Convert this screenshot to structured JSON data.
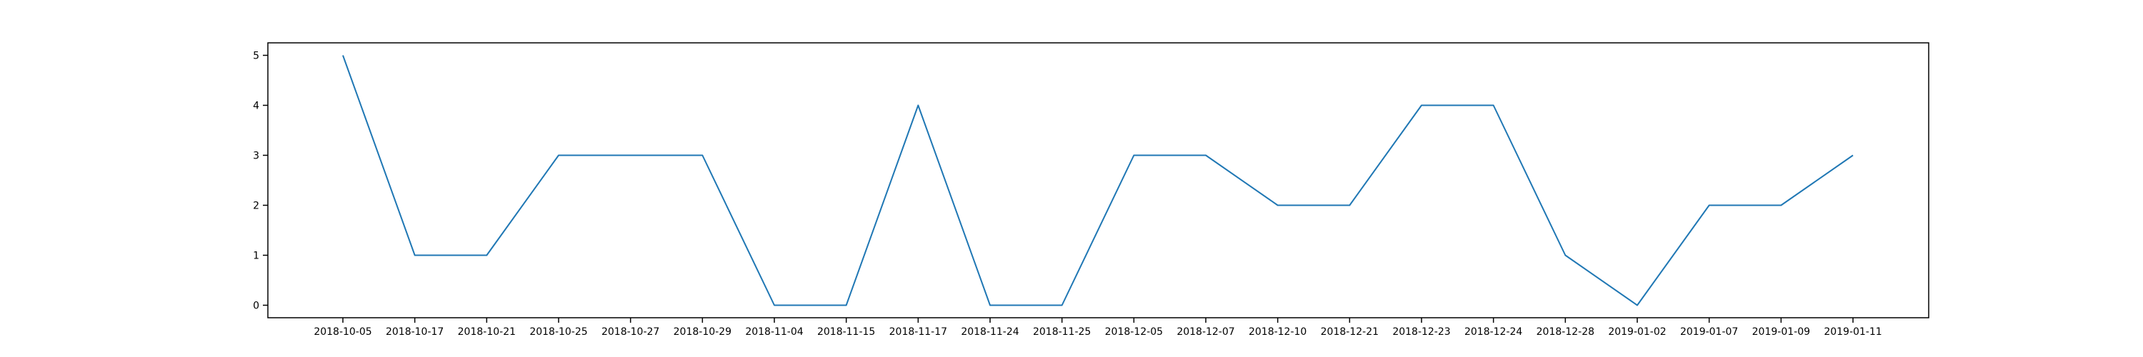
{
  "chart_data": {
    "type": "line",
    "title": "",
    "xlabel": "",
    "ylabel": "",
    "x": [
      "2018-10-05",
      "2018-10-17",
      "2018-10-21",
      "2018-10-25",
      "2018-10-27",
      "2018-10-29",
      "2018-11-04",
      "2018-11-15",
      "2018-11-17",
      "2018-11-24",
      "2018-11-25",
      "2018-12-05",
      "2018-12-07",
      "2018-12-10",
      "2018-12-21",
      "2018-12-23",
      "2018-12-24",
      "2018-12-28",
      "2019-01-02",
      "2019-01-07",
      "2019-01-09",
      "2019-01-11"
    ],
    "series": [
      {
        "values": [
          5,
          1,
          1,
          3,
          3,
          3,
          0,
          0,
          4,
          0,
          0,
          3,
          3,
          2,
          2,
          4,
          4,
          1,
          0,
          2,
          2,
          3
        ]
      }
    ],
    "yticks": [
      0,
      1,
      2,
      3,
      4,
      5
    ],
    "ylim": [
      -0.25,
      5.25
    ],
    "grid": false,
    "legend": "none",
    "colors": {
      "line": "#1f77b4",
      "axes": "#000000",
      "background": "#ffffff"
    }
  }
}
